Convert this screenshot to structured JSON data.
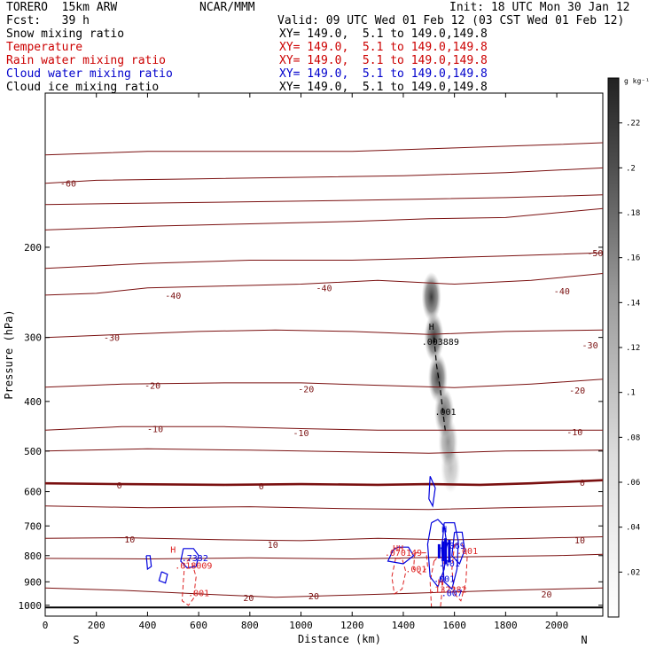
{
  "header": {
    "model": "TORERO  15km ARW",
    "org": "NCAR/MMM",
    "init": "Init: 18 UTC Mon 30 Jan 12",
    "fcst": "Fcst:   39 h",
    "valid": "Valid: 09 UTC Wed 01 Feb 12 (03 CST Wed 01 Feb 12)",
    "fields": [
      {
        "name": "Snow mixing ratio",
        "xy": "XY= 149.0,  5.1 to 149.0,149.8",
        "color": "#000000"
      },
      {
        "name": "Temperature",
        "xy": "XY= 149.0,  5.1 to 149.0,149.8",
        "color": "#cc0000"
      },
      {
        "name": "Rain water mixing ratio",
        "xy": "XY= 149.0,  5.1 to 149.0,149.8",
        "color": "#cc0000"
      },
      {
        "name": "Cloud water mixing ratio",
        "xy": "XY= 149.0,  5.1 to 149.0,149.8",
        "color": "#0000cc"
      },
      {
        "name": "Cloud ice mixing ratio",
        "xy": "XY= 149.0,  5.1 to 149.0,149.8",
        "color": "#000000"
      }
    ]
  },
  "chart_data": {
    "type": "cross-section",
    "xlabel": "Distance (km)",
    "ylabel": "Pressure (hPa)",
    "xlim": [
      0,
      2180
    ],
    "ylim": [
      1050,
      100
    ],
    "y_scale": "log",
    "x_ticks": [
      0,
      200,
      400,
      600,
      800,
      1000,
      1200,
      1400,
      1600,
      1800,
      2000
    ],
    "y_ticks": [
      200,
      300,
      400,
      500,
      600,
      700,
      800,
      900,
      1000
    ],
    "x_end_labels": {
      "left": "S",
      "right": "N"
    },
    "surface_pressure": 1010,
    "temperature_contours": [
      {
        "value": -60,
        "label": "-60",
        "points": [
          [
            0,
            150
          ],
          [
            200,
            148
          ],
          [
            600,
            147
          ],
          [
            1000,
            146
          ],
          [
            1400,
            145
          ],
          [
            1800,
            143
          ],
          [
            2180,
            140
          ]
        ],
        "labels": [
          [
            90,
            150
          ]
        ]
      },
      {
        "value": -60,
        "label": "",
        "points": [
          [
            0,
            132
          ],
          [
            400,
            130
          ],
          [
            800,
            130
          ],
          [
            1200,
            130
          ],
          [
            1600,
            128
          ],
          [
            2000,
            126
          ],
          [
            2180,
            125
          ]
        ],
        "labels": []
      },
      {
        "value": -60,
        "label": "",
        "points": [
          [
            0,
            165
          ],
          [
            400,
            164
          ],
          [
            800,
            163
          ],
          [
            1200,
            162
          ],
          [
            1500,
            161
          ],
          [
            1800,
            160
          ],
          [
            2180,
            158
          ]
        ],
        "labels": []
      },
      {
        "value": -50,
        "label": "-50",
        "points": [
          [
            0,
            185
          ],
          [
            400,
            182
          ],
          [
            800,
            180
          ],
          [
            1200,
            178
          ],
          [
            1500,
            176
          ],
          [
            1800,
            175
          ],
          [
            2180,
            168
          ]
        ],
        "labels": [
          [
            2150,
            205
          ]
        ]
      },
      {
        "value": -50,
        "label": "",
        "points": [
          [
            0,
            220
          ],
          [
            400,
            215
          ],
          [
            800,
            212
          ],
          [
            1200,
            212
          ],
          [
            1500,
            210
          ],
          [
            1800,
            208
          ],
          [
            2180,
            205
          ]
        ],
        "labels": []
      },
      {
        "value": -40,
        "label": "-40",
        "points": [
          [
            0,
            248
          ],
          [
            200,
            246
          ],
          [
            400,
            240
          ],
          [
            700,
            238
          ],
          [
            1000,
            236
          ],
          [
            1300,
            232
          ],
          [
            1600,
            236
          ],
          [
            1900,
            232
          ],
          [
            2180,
            225
          ]
        ],
        "labels": [
          [
            500,
            248
          ],
          [
            1090,
            240
          ],
          [
            2020,
            243
          ]
        ]
      },
      {
        "value": -30,
        "label": "-30",
        "points": [
          [
            0,
            300
          ],
          [
            300,
            296
          ],
          [
            600,
            292
          ],
          [
            900,
            290
          ],
          [
            1200,
            292
          ],
          [
            1500,
            296
          ],
          [
            1800,
            292
          ],
          [
            2180,
            290
          ]
        ],
        "labels": [
          [
            260,
            300
          ],
          [
            2130,
            310
          ]
        ]
      },
      {
        "value": -20,
        "label": "-20",
        "points": [
          [
            0,
            375
          ],
          [
            300,
            370
          ],
          [
            700,
            368
          ],
          [
            1000,
            368
          ],
          [
            1300,
            372
          ],
          [
            1600,
            376
          ],
          [
            1900,
            370
          ],
          [
            2180,
            362
          ]
        ],
        "labels": [
          [
            420,
            372
          ],
          [
            1020,
            378
          ],
          [
            2080,
            380
          ]
        ]
      },
      {
        "value": -10,
        "label": "-10",
        "points": [
          [
            0,
            455
          ],
          [
            300,
            448
          ],
          [
            700,
            448
          ],
          [
            1000,
            452
          ],
          [
            1300,
            455
          ],
          [
            1600,
            455
          ],
          [
            1900,
            455
          ],
          [
            2180,
            455
          ]
        ],
        "labels": [
          [
            430,
            452
          ],
          [
            1000,
            460
          ],
          [
            2070,
            458
          ]
        ]
      },
      {
        "value": -10,
        "label": "",
        "points": [
          [
            0,
            500
          ],
          [
            400,
            495
          ],
          [
            800,
            498
          ],
          [
            1200,
            502
          ],
          [
            1500,
            505
          ],
          [
            1800,
            500
          ],
          [
            2180,
            498
          ]
        ],
        "labels": []
      },
      {
        "value": 0,
        "label": "0",
        "points": [
          [
            0,
            578
          ],
          [
            300,
            580
          ],
          [
            700,
            582
          ],
          [
            1000,
            580
          ],
          [
            1300,
            582
          ],
          [
            1500,
            580
          ],
          [
            1700,
            582
          ],
          [
            1900,
            578
          ],
          [
            2180,
            570
          ]
        ],
        "labels": [
          [
            290,
            582
          ],
          [
            845,
            584
          ],
          [
            2100,
            575
          ]
        ],
        "bold": true
      },
      {
        "value": 5,
        "label": "",
        "points": [
          [
            0,
            640
          ],
          [
            400,
            645
          ],
          [
            800,
            642
          ],
          [
            1200,
            648
          ],
          [
            1500,
            650
          ],
          [
            1800,
            645
          ],
          [
            2180,
            640
          ]
        ],
        "labels": []
      },
      {
        "value": 10,
        "label": "10",
        "points": [
          [
            0,
            740
          ],
          [
            300,
            738
          ],
          [
            700,
            745
          ],
          [
            1000,
            748
          ],
          [
            1300,
            740
          ],
          [
            1600,
            745
          ],
          [
            1900,
            740
          ],
          [
            2180,
            735
          ]
        ],
        "labels": [
          [
            330,
            742
          ],
          [
            890,
            760
          ],
          [
            2090,
            746
          ]
        ]
      },
      {
        "value": 15,
        "label": "",
        "points": [
          [
            0,
            810
          ],
          [
            400,
            812
          ],
          [
            800,
            808
          ],
          [
            1200,
            812
          ],
          [
            1600,
            805
          ],
          [
            2000,
            800
          ],
          [
            2180,
            795
          ]
        ],
        "labels": []
      },
      {
        "value": 20,
        "label": "20",
        "points": [
          [
            0,
            925
          ],
          [
            300,
            935
          ],
          [
            700,
            955
          ],
          [
            900,
            965
          ],
          [
            1200,
            955
          ],
          [
            1500,
            945
          ],
          [
            1800,
            935
          ],
          [
            2180,
            925
          ]
        ],
        "labels": [
          [
            795,
            965
          ],
          [
            1050,
            958
          ],
          [
            1960,
            950
          ]
        ]
      }
    ],
    "snow_max_label": "H",
    "snow_max_value": ".003889",
    "snow_isoline_value": ".001",
    "rain_labels": [
      {
        "text": "H",
        "x": 500,
        "y": 790
      },
      {
        "text": ".018009",
        "x": 580,
        "y": 848
      },
      {
        "text": ".001",
        "x": 600,
        "y": 960
      },
      {
        "text": "HH",
        "x": 1380,
        "y": 785
      },
      {
        "text": ".070149",
        "x": 1400,
        "y": 800
      },
      {
        "text": ".001",
        "x": 1450,
        "y": 862
      },
      {
        "text": "H",
        "x": 1545,
        "y": 915
      },
      {
        "text": ".132282",
        "x": 1575,
        "y": 945
      },
      {
        "text": ".001",
        "x": 1650,
        "y": 795
      }
    ],
    "cloud_labels": [
      {
        "text": ".7332",
        "x": 585,
        "y": 820
      },
      {
        "text": "H",
        "x": 1560,
        "y": 720
      },
      {
        "text": ".7069",
        "x": 1590,
        "y": 775
      },
      {
        "text": ".401",
        "x": 1580,
        "y": 840
      },
      {
        "text": ".001",
        "x": 1560,
        "y": 900
      },
      {
        "text": ".007",
        "x": 1590,
        "y": 960
      }
    ],
    "colorbar": {
      "unit": "g kg⁻¹",
      "range": [
        0,
        0.24
      ],
      "ticks": [
        ".02",
        ".04",
        ".06",
        ".08",
        ".1",
        ".12",
        ".14",
        ".16",
        ".18",
        ".2",
        ".22"
      ]
    }
  },
  "colors": {
    "temperature": "#7a1010",
    "rain": "#dd2222",
    "cloud": "#0000dd",
    "background": "#ffffff"
  }
}
